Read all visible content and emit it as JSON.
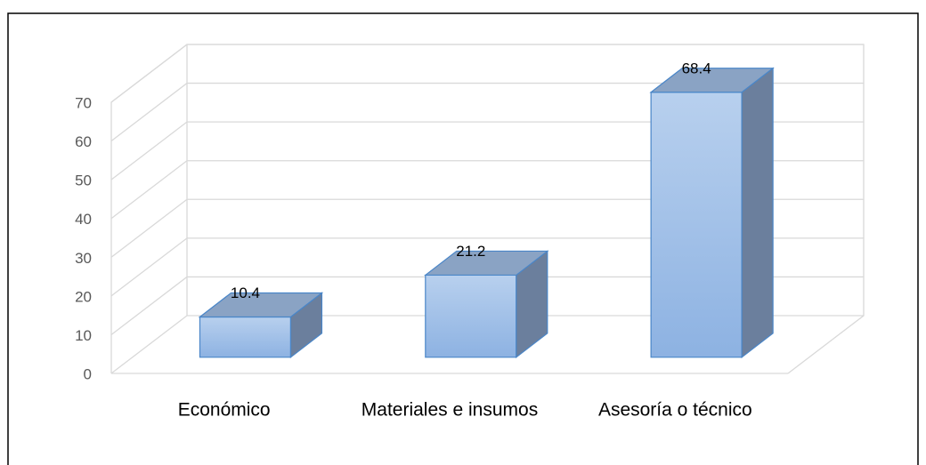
{
  "chart_data": {
    "type": "bar3d",
    "categories": [
      "Económico",
      "Materiales e insumos",
      "Asesoría o técnico"
    ],
    "values": [
      10.4,
      21.2,
      68.4
    ],
    "color": "#9dbde8",
    "ylim": [
      0,
      70
    ],
    "yticks": [
      0,
      10,
      20,
      30,
      40,
      50,
      60,
      70
    ],
    "grid": true
  }
}
